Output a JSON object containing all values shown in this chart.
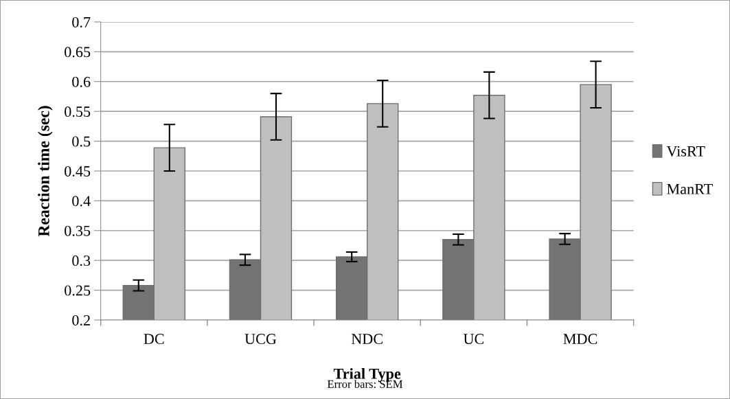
{
  "chart_data": {
    "type": "bar",
    "xlabel": "Trial Type",
    "ylabel": "Reaction time (sec)",
    "annotations": [
      "Error bars: SEM"
    ],
    "categories": [
      "DC",
      "UCG",
      "NDC",
      "UC",
      "MDC"
    ],
    "series": [
      {
        "name": "VisRT",
        "color": "#737373",
        "values": [
          0.258,
          0.301,
          0.306,
          0.335,
          0.336
        ],
        "errors": [
          0.009,
          0.009,
          0.008,
          0.009,
          0.009
        ]
      },
      {
        "name": "ManRT",
        "color": "#bfbfbf",
        "values": [
          0.489,
          0.541,
          0.563,
          0.577,
          0.595
        ],
        "errors": [
          0.039,
          0.039,
          0.039,
          0.039,
          0.039
        ]
      }
    ],
    "ylim": [
      0.2,
      0.7
    ],
    "yticks": [
      0.2,
      0.25,
      0.3,
      0.35,
      0.4,
      0.45,
      0.5,
      0.55,
      0.6,
      0.65,
      0.7
    ],
    "grid": "y",
    "legend": "right"
  }
}
